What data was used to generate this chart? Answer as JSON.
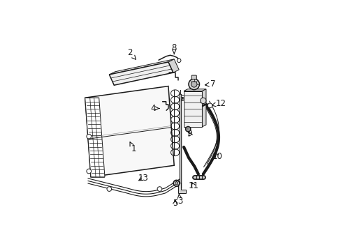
{
  "background_color": "#ffffff",
  "line_color": "#1a1a1a",
  "figsize": [
    4.89,
    3.6
  ],
  "dpi": 100,
  "label_configs": {
    "1": {
      "text": [
        0.285,
        0.385
      ],
      "arrow_to": [
        0.265,
        0.425
      ]
    },
    "2": {
      "text": [
        0.265,
        0.885
      ],
      "arrow_to": [
        0.3,
        0.845
      ]
    },
    "3": {
      "text": [
        0.525,
        0.115
      ],
      "arrow_to": [
        0.52,
        0.155
      ]
    },
    "4": {
      "text": [
        0.385,
        0.595
      ],
      "arrow_to": [
        0.42,
        0.595
      ]
    },
    "5": {
      "text": [
        0.5,
        0.105
      ],
      "arrow_to": [
        0.505,
        0.135
      ]
    },
    "6": {
      "text": [
        0.535,
        0.645
      ],
      "arrow_to": [
        0.555,
        0.655
      ]
    },
    "7": {
      "text": [
        0.695,
        0.72
      ],
      "arrow_to": [
        0.64,
        0.715
      ]
    },
    "8": {
      "text": [
        0.495,
        0.91
      ],
      "arrow_to": [
        0.495,
        0.875
      ]
    },
    "9": {
      "text": [
        0.575,
        0.465
      ],
      "arrow_to": [
        0.565,
        0.485
      ]
    },
    "10": {
      "text": [
        0.72,
        0.345
      ],
      "arrow_to": [
        0.695,
        0.375
      ]
    },
    "11": {
      "text": [
        0.595,
        0.195
      ],
      "arrow_to": [
        0.58,
        0.225
      ]
    },
    "12": {
      "text": [
        0.735,
        0.62
      ],
      "arrow_to": [
        0.685,
        0.61
      ]
    },
    "13": {
      "text": [
        0.335,
        0.235
      ],
      "arrow_to": [
        0.3,
        0.215
      ]
    }
  }
}
